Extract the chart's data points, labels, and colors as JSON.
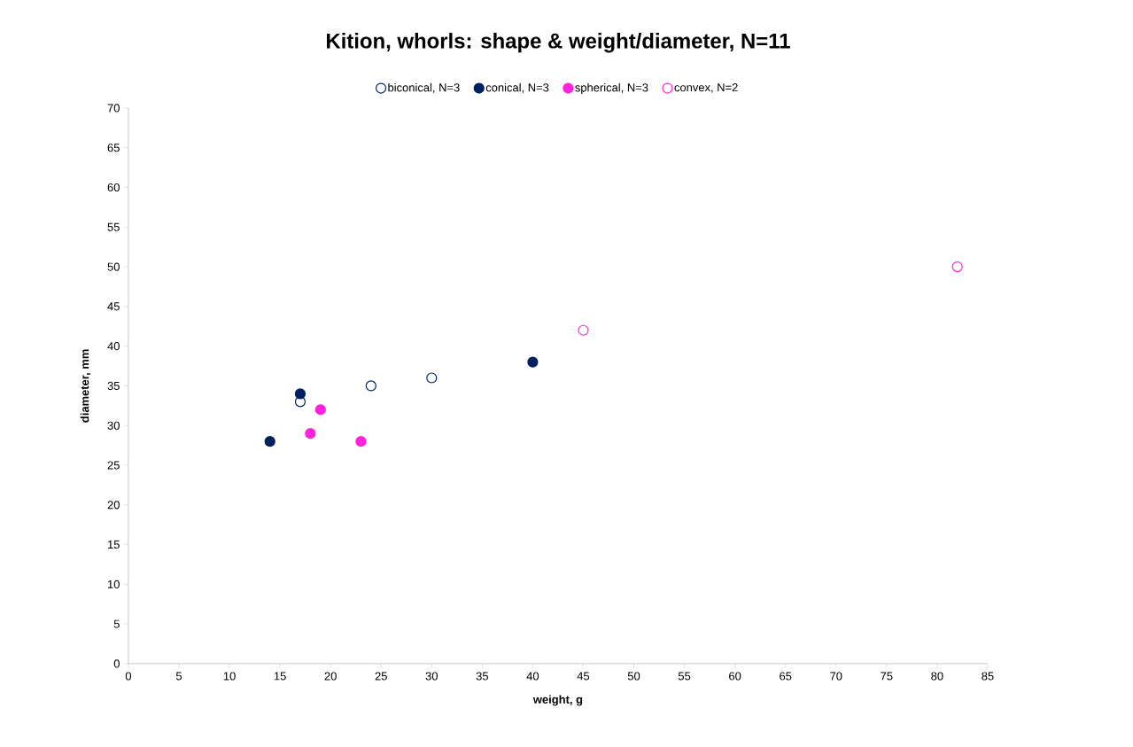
{
  "chart_data": {
    "type": "scatter",
    "title": "Kition, whorls: shape & weight/diameter, N=11",
    "xlabel": "weight, g",
    "ylabel": "diameter, mm",
    "series": [
      {
        "name": "biconical, N=3",
        "color": "#002060",
        "x": [
          17,
          24,
          30
        ],
        "values": [
          33,
          35,
          36
        ]
      },
      {
        "name": "conical, N=3",
        "color": "#002060",
        "x": [
          14,
          17,
          40
        ],
        "values": [
          28,
          34,
          38
        ]
      },
      {
        "name": "spherical, N=3",
        "color": "#ff22dd",
        "x": [
          18,
          19,
          23
        ],
        "values": [
          29,
          32,
          28
        ]
      },
      {
        "name": "convex, N=2",
        "color": "#ff22dd",
        "x": [
          45,
          82
        ],
        "values": [
          42,
          50
        ]
      }
    ],
    "xlim": [
      0,
      85
    ],
    "xticks": [
      0,
      5,
      10,
      15,
      20,
      25,
      30,
      35,
      40,
      45,
      50,
      55,
      60,
      65,
      70,
      75,
      80,
      85
    ],
    "ylim": [
      0,
      70
    ],
    "yticks": [
      0,
      5,
      10,
      15,
      20,
      25,
      30,
      35,
      40,
      45,
      50,
      55,
      60,
      65,
      70
    ],
    "grid": false,
    "legend": "top",
    "marker": "circle"
  }
}
